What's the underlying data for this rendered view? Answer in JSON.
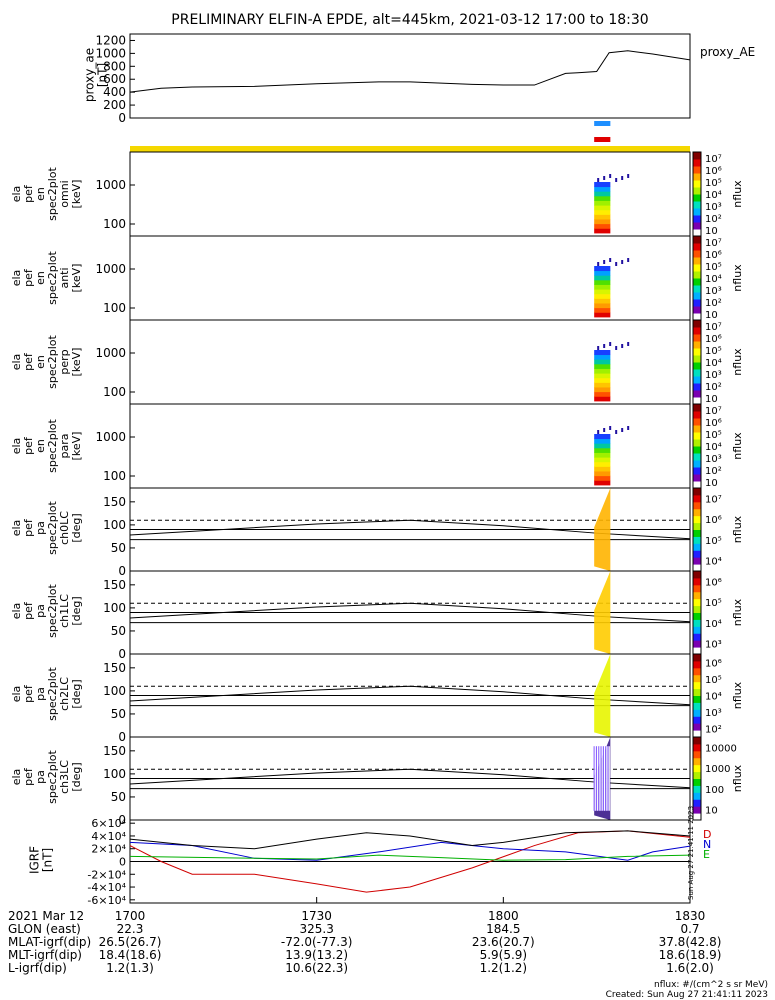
{
  "title": "PRELIMINARY ELFIN-A EPDE, alt=445km, 2021-03-12 17:00 to 18:30",
  "proxy_ae": {
    "ylabel_lines": [
      "proxy_ae",
      "[nT]"
    ],
    "legend": "proxy_AE",
    "yticks": [
      "0",
      "200",
      "400",
      "600",
      "800",
      "1000",
      "1200"
    ],
    "ylim": [
      0,
      1300
    ],
    "x_minutes": [
      0,
      5,
      10,
      20,
      30,
      40,
      45,
      50,
      55,
      60,
      65,
      70,
      72,
      75,
      77,
      80,
      84,
      90
    ],
    "values": [
      400,
      460,
      480,
      490,
      530,
      560,
      560,
      540,
      520,
      510,
      510,
      690,
      700,
      720,
      1010,
      1040,
      990,
      900
    ]
  },
  "science_zone": {
    "bar_color": "#f5d800",
    "blue_bar_color": "#1e8fff",
    "red_bar_color": "#e00000",
    "start_minute": 74.6,
    "end_minute": 77.2
  },
  "spectrogram_panels": [
    {
      "ylabel_lines": [
        "ela",
        "pef",
        "en",
        "spec2plot",
        "omni",
        "[keV]"
      ],
      "yticks": [
        "100",
        "1000"
      ],
      "cbar_label": "nflux"
    },
    {
      "ylabel_lines": [
        "ela",
        "pef",
        "en",
        "spec2plot",
        "anti",
        "[keV]"
      ],
      "yticks": [
        "100",
        "1000"
      ],
      "cbar_label": "nflux"
    },
    {
      "ylabel_lines": [
        "ela",
        "pef",
        "en",
        "spec2plot",
        "perp",
        "[keV]"
      ],
      "yticks": [
        "100",
        "1000"
      ],
      "cbar_label": "nflux"
    },
    {
      "ylabel_lines": [
        "ela",
        "pef",
        "en",
        "spec2plot",
        "para",
        "[keV]"
      ],
      "yticks": [
        "100",
        "1000"
      ],
      "cbar_label": "nflux"
    }
  ],
  "pa_panels": [
    {
      "ylabel_lines": [
        "ela",
        "pef",
        "pa",
        "spec2plot",
        "ch0LC",
        "[deg]"
      ],
      "yticks": [
        "0",
        "50",
        "100",
        "150"
      ],
      "cbar_label": "nflux",
      "fill": "#ffb400"
    },
    {
      "ylabel_lines": [
        "ela",
        "pef",
        "pa",
        "spec2plot",
        "ch1LC",
        "[deg]"
      ],
      "yticks": [
        "0",
        "50",
        "100",
        "150"
      ],
      "cbar_label": "nflux",
      "fill": "#ffcc00"
    },
    {
      "ylabel_lines": [
        "ela",
        "pef",
        "pa",
        "spec2plot",
        "ch2LC",
        "[deg]"
      ],
      "yticks": [
        "0",
        "50",
        "100",
        "150"
      ],
      "cbar_label": "nflux",
      "fill": "#e8f500"
    },
    {
      "ylabel_lines": [
        "ela",
        "pef",
        "pa",
        "spec2plot",
        "ch3LC",
        "[deg]"
      ],
      "yticks": [
        "0",
        "50",
        "100",
        "150"
      ],
      "cbar_label": "nflux",
      "fill": "#3a1a8a"
    }
  ],
  "cbar_ticks": {
    "energy": [
      "10",
      "10²",
      "10³",
      "10⁴",
      "10⁵",
      "10⁶",
      "10⁷"
    ],
    "ch0": [
      "10⁴",
      "10⁵",
      "10⁶",
      "10⁷"
    ],
    "ch1": [
      "10³",
      "10⁴",
      "10⁵",
      "10⁶"
    ],
    "ch2": [
      "10²",
      "10³",
      "10⁴",
      "10⁵",
      "10⁶"
    ],
    "ch3": [
      "10",
      "100",
      "1000",
      "10000"
    ]
  },
  "igrf": {
    "ylabel_lines": [
      "IGRF",
      "[nT]"
    ],
    "yticks": [
      "-6×10⁴",
      "-4×10⁴",
      "-2×10⁴",
      "0",
      "2×10⁴",
      "4×10⁴",
      "6×10⁴"
    ],
    "legend": [
      "D",
      "N",
      "E"
    ],
    "legend_colors": [
      "#d00000",
      "#0000d0",
      "#00b000"
    ]
  },
  "chart_data": {
    "type": "line",
    "title": "PRELIMINARY ELFIN-A EPDE, alt=445km, 2021-03-12 17:00 to 18:30",
    "x_range_minutes": [
      0,
      90
    ],
    "proxy_ae_series": {
      "name": "proxy_AE",
      "x": [
        0,
        5,
        10,
        20,
        30,
        40,
        45,
        50,
        55,
        60,
        65,
        70,
        72,
        75,
        77,
        80,
        84,
        90
      ],
      "y": [
        400,
        460,
        480,
        490,
        530,
        560,
        560,
        540,
        520,
        510,
        510,
        690,
        700,
        720,
        1010,
        1040,
        990,
        900
      ]
    },
    "pitch_angle_reference_lines_deg": [
      90,
      110,
      68
    ],
    "loss_cone_curve": {
      "x": [
        0,
        15,
        30,
        45,
        60,
        75,
        90
      ],
      "y": [
        78,
        90,
        102,
        110,
        98,
        82,
        70
      ]
    },
    "igrf_series": [
      {
        "name": "D",
        "color": "#d00000",
        "x": [
          0,
          5,
          10,
          20,
          30,
          38,
          45,
          55,
          65,
          72,
          80,
          90
        ],
        "y": [
          25000,
          0,
          -20000,
          -20000,
          -35000,
          -48000,
          -40000,
          -10000,
          25000,
          45000,
          48000,
          38000
        ]
      },
      {
        "name": "N",
        "color": "#0000d0",
        "x": [
          0,
          10,
          20,
          30,
          40,
          50,
          60,
          70,
          80,
          84,
          90
        ],
        "y": [
          30000,
          25000,
          5000,
          2000,
          15000,
          30000,
          20000,
          15000,
          2000,
          15000,
          24000
        ]
      },
      {
        "name": "E",
        "color": "#00b000",
        "x": [
          0,
          20,
          30,
          40,
          50,
          60,
          70,
          80,
          90
        ],
        "y": [
          8000,
          5000,
          4000,
          10000,
          6000,
          2000,
          3000,
          8000,
          10000
        ]
      },
      {
        "name": "total",
        "color": "#000000",
        "x": [
          0,
          10,
          20,
          30,
          38,
          45,
          55,
          60,
          70,
          80,
          90
        ],
        "y": [
          35000,
          25000,
          20000,
          35000,
          45000,
          40000,
          25000,
          30000,
          45000,
          48000,
          40000
        ]
      }
    ]
  },
  "footer": {
    "rows": [
      {
        "label": "2021 Mar 12",
        "values": [
          "1700",
          "1730",
          "1800",
          "1830"
        ]
      },
      {
        "label": "GLON (east)",
        "values": [
          "22.3",
          "325.3",
          "184.5",
          "0.7"
        ]
      },
      {
        "label": "MLAT-igrf(dip)",
        "values": [
          "26.5(26.7)",
          "-72.0(-77.3)",
          "23.6(20.7)",
          "37.8(42.8)"
        ]
      },
      {
        "label": "MLT-igrf(dip)",
        "values": [
          "18.4(18.6)",
          "13.9(13.2)",
          "5.9(5.9)",
          "18.6(18.9)"
        ]
      },
      {
        "label": "L-igrf(dip)",
        "values": [
          "1.2(1.3)",
          "10.6(22.3)",
          "1.2(1.2)",
          "1.6(2.0)"
        ]
      }
    ],
    "nflux_units": "nflux: #/(cm^2 s sr MeV)",
    "created": "Created: Sun Aug 27 21:41:11 2023",
    "side_stamp": "Sun Aug 27 21:41:11 2023"
  }
}
